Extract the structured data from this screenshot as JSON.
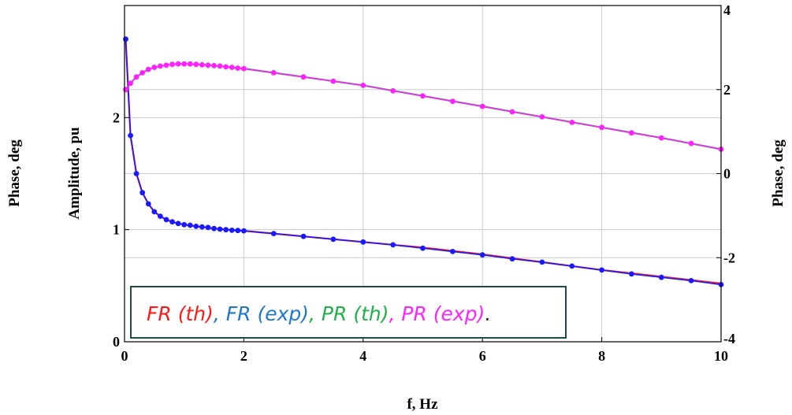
{
  "chart_data": {
    "type": "line",
    "xlabel": "f, Hz",
    "ylabel_outer": "Phase, deg",
    "ylabel_left": "Amplitude, pu",
    "ylabel_right": "Phase, deg",
    "xlim": [
      0,
      10
    ],
    "ylim_left": [
      0,
      3
    ],
    "ylim_right": [
      -4,
      4
    ],
    "x_ticks": [
      "0",
      "2",
      "4",
      "6",
      "8",
      "10"
    ],
    "y_left_ticks": [
      "0",
      "1",
      "2"
    ],
    "y_right_ticks": [
      "-4",
      "-2",
      "0",
      "2",
      "4"
    ],
    "grid": true,
    "legend": {
      "location": "bottom-left",
      "entries": [
        {
          "text": "FR (th)",
          "color": "#ff1a1a"
        },
        {
          "text": ", ",
          "color": "#1f78c8"
        },
        {
          "text": "FR (exp)",
          "color": "#1f78c8"
        },
        {
          "text": ", ",
          "color": "#22b04b"
        },
        {
          "text": "PR (th)",
          "color": "#22b04b"
        },
        {
          "text": ", ",
          "color": "#ff22ff"
        },
        {
          "text": "PR (exp)",
          "color": "#ff22ff"
        },
        {
          "text": ".",
          "color": "#222222"
        }
      ]
    },
    "series": [
      {
        "name": "FR (th)",
        "axis": "left",
        "color": "#ff1a1a",
        "style": "line",
        "x": [
          0.02,
          0.1,
          0.2,
          0.3,
          0.4,
          0.5,
          0.6,
          0.7,
          0.8,
          0.9,
          1.0,
          1.2,
          1.5,
          2.0,
          3.0,
          4.0,
          5.0,
          6.0,
          7.0,
          8.0,
          9.0,
          10.0
        ],
        "y": [
          2.7,
          1.84,
          1.5,
          1.33,
          1.23,
          1.16,
          1.12,
          1.09,
          1.07,
          1.055,
          1.045,
          1.03,
          1.01,
          0.99,
          0.94,
          0.89,
          0.84,
          0.78,
          0.71,
          0.64,
          0.58,
          0.52
        ]
      },
      {
        "name": "FR (exp)",
        "axis": "left",
        "color": "#1a1aff",
        "style": "markers",
        "x": [
          0.02,
          0.1,
          0.2,
          0.3,
          0.4,
          0.5,
          0.6,
          0.7,
          0.8,
          0.9,
          1.0,
          1.1,
          1.2,
          1.3,
          1.4,
          1.5,
          1.6,
          1.7,
          1.8,
          1.9,
          2.0,
          2.5,
          3.0,
          3.5,
          4.0,
          4.5,
          5.0,
          5.5,
          6.0,
          6.5,
          7.0,
          7.5,
          8.0,
          8.5,
          9.0,
          9.5,
          10.0
        ],
        "y": [
          2.7,
          1.84,
          1.5,
          1.33,
          1.23,
          1.16,
          1.12,
          1.09,
          1.07,
          1.055,
          1.045,
          1.04,
          1.03,
          1.025,
          1.02,
          1.01,
          1.005,
          1.0,
          0.995,
          0.993,
          0.99,
          0.965,
          0.94,
          0.915,
          0.89,
          0.865,
          0.835,
          0.805,
          0.775,
          0.74,
          0.71,
          0.675,
          0.64,
          0.605,
          0.575,
          0.545,
          0.51
        ]
      },
      {
        "name": "PR (th)",
        "axis": "right",
        "color": "#22b04b",
        "style": "line",
        "x": [
          0.02,
          0.1,
          0.2,
          0.3,
          0.4,
          0.5,
          0.6,
          0.7,
          0.8,
          0.9,
          1.0,
          1.2,
          1.5,
          2.0,
          3.0,
          4.0,
          5.0,
          6.0,
          7.0,
          8.0,
          9.0,
          10.0
        ],
        "y": [
          2.0,
          2.15,
          2.3,
          2.4,
          2.48,
          2.53,
          2.56,
          2.58,
          2.6,
          2.61,
          2.61,
          2.6,
          2.57,
          2.5,
          2.3,
          2.1,
          1.85,
          1.6,
          1.35,
          1.1,
          0.85,
          0.58
        ]
      },
      {
        "name": "PR (exp)",
        "axis": "right",
        "color": "#ff22ff",
        "style": "markers",
        "x": [
          0.02,
          0.1,
          0.2,
          0.3,
          0.4,
          0.5,
          0.6,
          0.7,
          0.8,
          0.9,
          1.0,
          1.1,
          1.2,
          1.3,
          1.4,
          1.5,
          1.6,
          1.7,
          1.8,
          1.9,
          2.0,
          2.5,
          3.0,
          3.5,
          4.0,
          4.5,
          5.0,
          5.5,
          6.0,
          6.5,
          7.0,
          7.5,
          8.0,
          8.5,
          9.0,
          9.5,
          10.0
        ],
        "y": [
          2.0,
          2.15,
          2.3,
          2.4,
          2.48,
          2.53,
          2.56,
          2.58,
          2.6,
          2.61,
          2.61,
          2.61,
          2.6,
          2.59,
          2.58,
          2.57,
          2.56,
          2.54,
          2.53,
          2.51,
          2.5,
          2.4,
          2.3,
          2.2,
          2.1,
          1.97,
          1.85,
          1.72,
          1.6,
          1.47,
          1.35,
          1.22,
          1.1,
          0.97,
          0.85,
          0.72,
          0.58
        ]
      }
    ]
  },
  "colors": {
    "grid": "#cccccc",
    "frame": "#000000",
    "legend_border": "#1e4a4a"
  }
}
